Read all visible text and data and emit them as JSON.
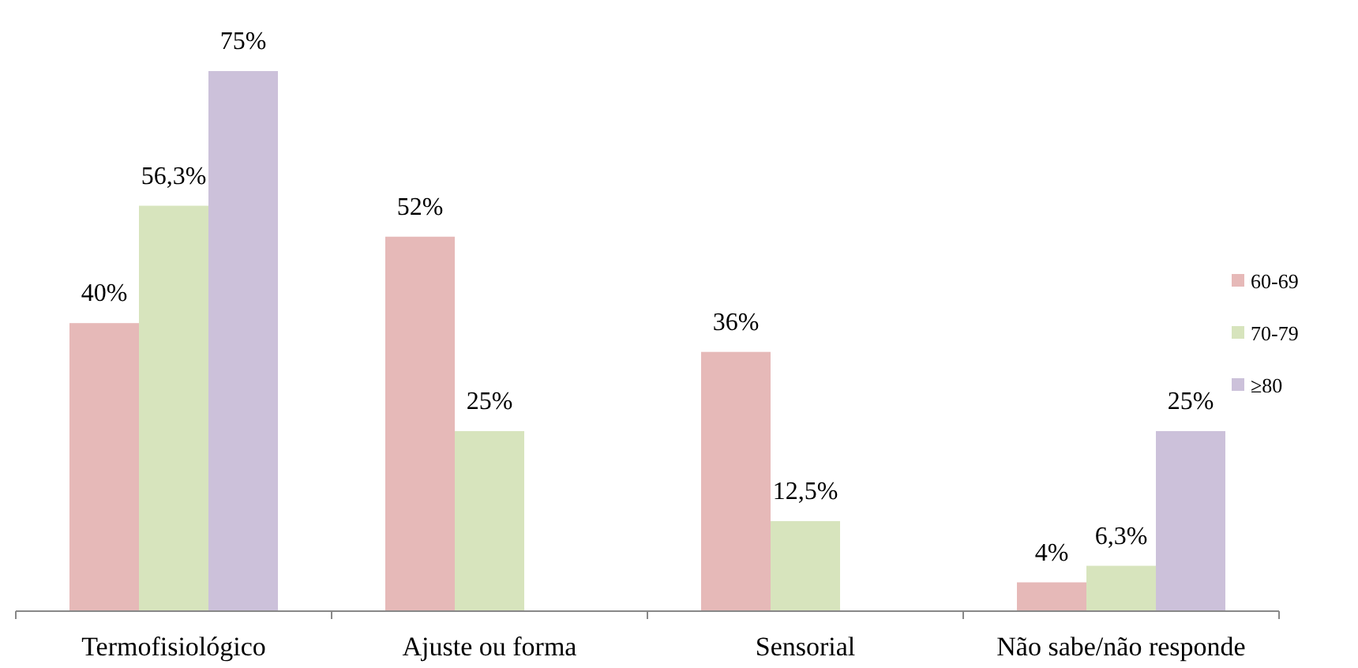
{
  "chart_data": {
    "type": "bar",
    "categories": [
      "Termofisiológico",
      "Ajuste ou forma",
      "Sensorial",
      "Não sabe/não responde"
    ],
    "series": [
      {
        "name": "60-69",
        "color": "#e6b9b8",
        "values": [
          40,
          52,
          36,
          4
        ],
        "value_labels": [
          "40%",
          "52%",
          "36%",
          "4%"
        ]
      },
      {
        "name": "70-79",
        "color": "#d7e4bd",
        "values": [
          56.3,
          25,
          12.5,
          6.3
        ],
        "value_labels": [
          "56,3%",
          "25%",
          "12,5%",
          "6,3%"
        ]
      },
      {
        "name": "≥80",
        "color": "#ccc1da",
        "values": [
          75,
          null,
          null,
          25
        ],
        "value_labels": [
          "75%",
          null,
          null,
          "25%"
        ]
      }
    ],
    "legend": "right"
  }
}
